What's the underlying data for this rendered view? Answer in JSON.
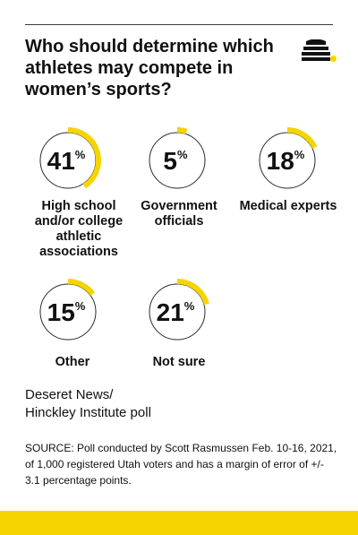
{
  "chart_title": "Who should determine which athletes may compete in women’s sports?",
  "chart_data": {
    "type": "pie",
    "title": "Who should determine which athletes may compete in women’s sports?",
    "categories": [
      "High school and/or college athletic associations",
      "Government officials",
      "Medical experts",
      "Other",
      "Not sure"
    ],
    "values": [
      41,
      5,
      18,
      15,
      21
    ],
    "unit": "%"
  },
  "items": [
    {
      "value": "41",
      "unit": "%",
      "label": "High school and/or college athletic associations"
    },
    {
      "value": "5",
      "unit": "%",
      "label": "Government officials"
    },
    {
      "value": "18",
      "unit": "%",
      "label": "Medical experts"
    },
    {
      "value": "15",
      "unit": "%",
      "label": "Other"
    },
    {
      "value": "21",
      "unit": "%",
      "label": "Not sure"
    }
  ],
  "credit": {
    "line1": "Deseret News/",
    "line2": "Hinckley Institute poll"
  },
  "source": "SOURCE: Poll conducted by Scott Rasmussen Feb. 10-16, 2021, of 1,000 registered Utah voters and has a margin of error of +/- 3.1 percentage points.",
  "colors": {
    "accent": "#F6D400",
    "ring": "#2B2B2B",
    "text": "#111111",
    "band": "#F6D400"
  },
  "logo_icon": "beehive-icon"
}
